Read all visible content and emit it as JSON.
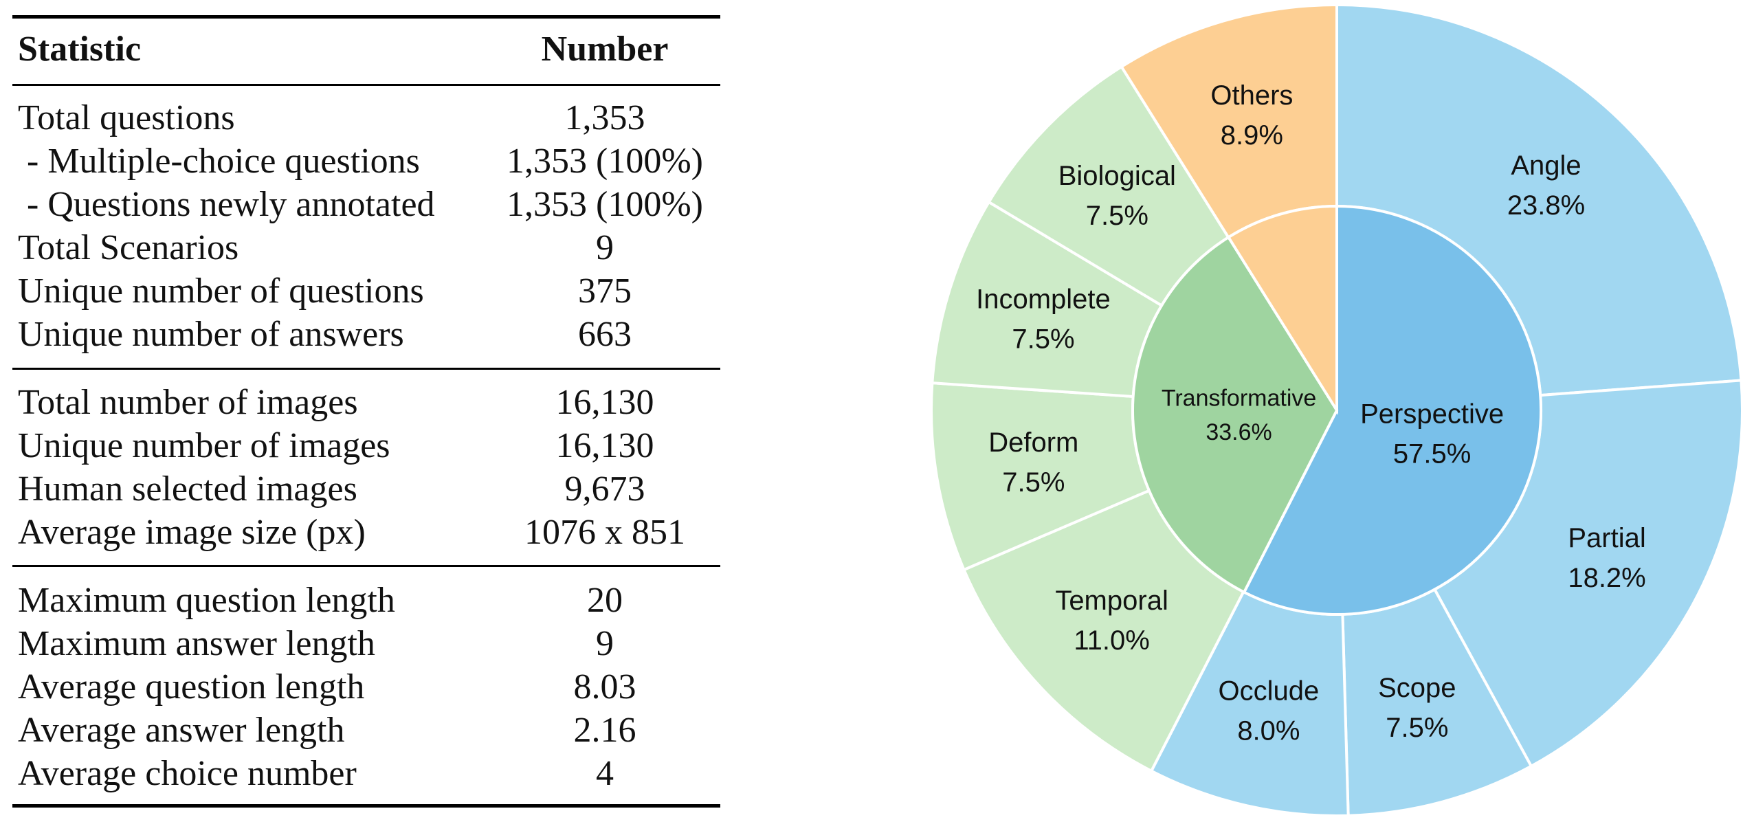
{
  "table": {
    "header": {
      "statistic": "Statistic",
      "number": "Number"
    },
    "groups": [
      [
        {
          "label": "Total questions",
          "value": "1,353"
        },
        {
          "label": " - Multiple-choice questions",
          "value": "1,353 (100%)"
        },
        {
          "label": " - Questions newly annotated",
          "value": "1,353 (100%)"
        },
        {
          "label": "Total Scenarios",
          "value": "9"
        },
        {
          "label": "Unique number of questions",
          "value": "375"
        },
        {
          "label": "Unique number of answers",
          "value": "663"
        }
      ],
      [
        {
          "label": "Total number of images",
          "value": "16,130"
        },
        {
          "label": "Unique number of images",
          "value": "16,130"
        },
        {
          "label": "Human selected images",
          "value": "9,673"
        },
        {
          "label": "Average image size (px)",
          "value": "1076 x 851"
        }
      ],
      [
        {
          "label": "Maximum question length",
          "value": "20"
        },
        {
          "label": "Maximum answer length",
          "value": "9"
        },
        {
          "label": "Average question length",
          "value": "8.03"
        },
        {
          "label": "Average answer length",
          "value": "2.16"
        },
        {
          "label": "Average choice number",
          "value": "4"
        }
      ]
    ]
  },
  "chart_data": {
    "type": "pie",
    "variant": "sunburst",
    "start": "12 o'clock, clockwise",
    "inner": [
      {
        "name": "Perspective",
        "value": 57.5,
        "label": "57.5%",
        "color": "#79C0EA"
      },
      {
        "name": "Transformative",
        "value": 33.6,
        "label": "33.6%",
        "color": "#9FD4A0"
      },
      {
        "name": "",
        "value": 8.9,
        "label": "",
        "color": "#FDCF93"
      }
    ],
    "outer": [
      {
        "name": "Angle",
        "value": 23.8,
        "label": "23.8%",
        "parent": "Perspective",
        "color": "#A1D7F1"
      },
      {
        "name": "Partial",
        "value": 18.2,
        "label": "18.2%",
        "parent": "Perspective",
        "color": "#A1D7F1"
      },
      {
        "name": "Scope",
        "value": 7.5,
        "label": "7.5%",
        "parent": "Perspective",
        "color": "#A1D7F1"
      },
      {
        "name": "Occlude",
        "value": 8.0,
        "label": "8.0%",
        "parent": "Perspective",
        "color": "#A1D7F1"
      },
      {
        "name": "Temporal",
        "value": 11.0,
        "label": "11.0%",
        "parent": "Transformative",
        "color": "#CDEBC8"
      },
      {
        "name": "Deform",
        "value": 7.5,
        "label": "7.5%",
        "parent": "Transformative",
        "color": "#CDEBC8"
      },
      {
        "name": "Incomplete",
        "value": 7.5,
        "label": "7.5%",
        "parent": "Transformative",
        "color": "#CDEBC8"
      },
      {
        "name": "Biological",
        "value": 7.5,
        "label": "7.5%",
        "parent": "Transformative",
        "color": "#CDEBC8"
      },
      {
        "name": "Others",
        "value": 8.9,
        "label": "8.9%",
        "parent": "",
        "color": "#FDCF93"
      }
    ]
  }
}
